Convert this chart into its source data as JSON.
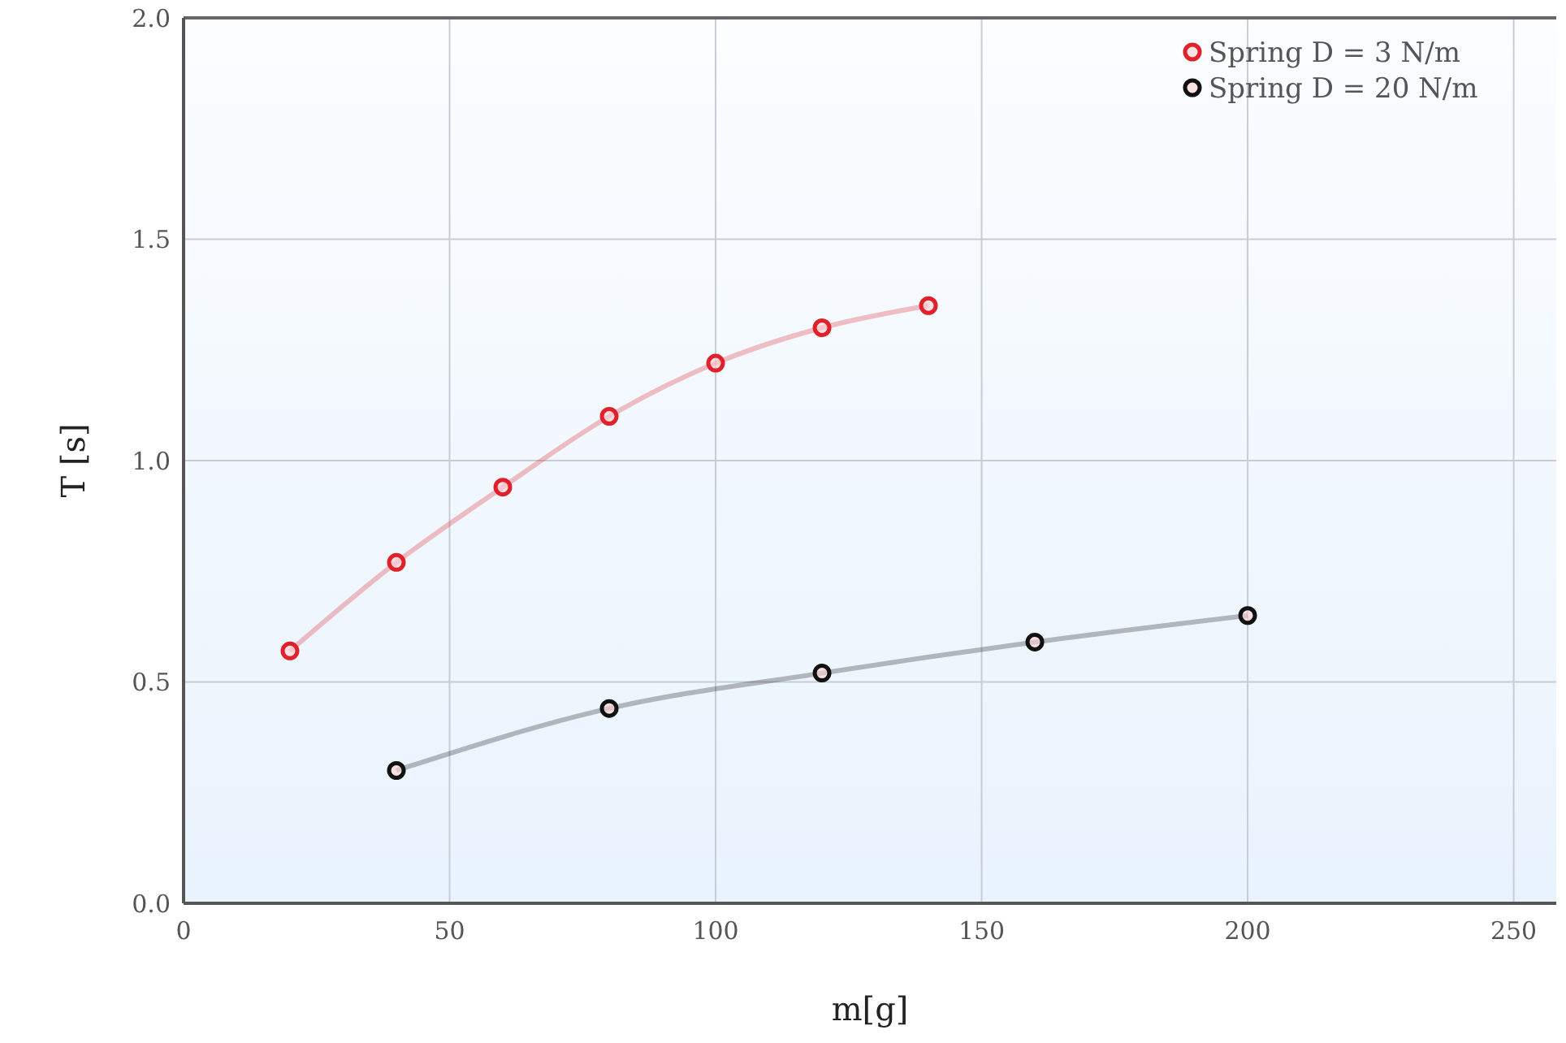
{
  "chart_data": {
    "type": "line",
    "xlabel": "m[g]",
    "ylabel": "T [s]",
    "xlim": [
      0,
      258
    ],
    "xticks": [
      0,
      50,
      100,
      150,
      200,
      250
    ],
    "ylim": [
      0,
      2
    ],
    "yticks": [
      {
        "value": 0,
        "label": "0.0"
      },
      {
        "value": 0.5,
        "label": "0.5"
      },
      {
        "value": 1,
        "label": "1.0"
      },
      {
        "value": 1.5,
        "label": "1.5"
      },
      {
        "value": 2,
        "label": "2.0"
      }
    ],
    "grid": true,
    "legend": "top right",
    "marker": "circle",
    "series": [
      {
        "name": "Spring D = 3 N/m",
        "color": "#e0202a",
        "x": [
          20,
          40,
          60,
          80,
          100,
          120,
          140
        ],
        "values": [
          0.57,
          0.77,
          0.94,
          1.1,
          1.22,
          1.3,
          1.35
        ]
      },
      {
        "name": "Spring D = 20 N/m",
        "color": "#111111",
        "x": [
          40,
          80,
          120,
          160,
          200
        ],
        "values": [
          0.3,
          0.44,
          0.52,
          0.59,
          0.65
        ]
      }
    ]
  }
}
